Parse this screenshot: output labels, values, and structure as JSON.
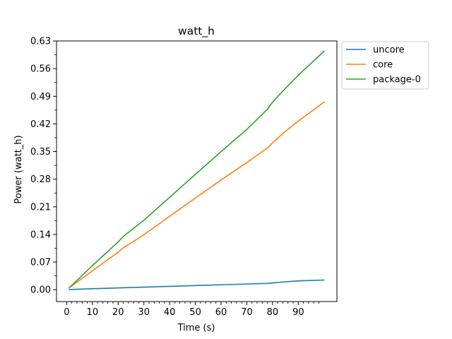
{
  "chart_data": {
    "type": "line",
    "title": "watt_h",
    "xlabel": "Time (s)",
    "ylabel": "Power (watt_h)",
    "xlim": [
      -3.95,
      105
    ],
    "ylim": [
      -0.03,
      0.63
    ],
    "xticks": [
      0,
      10,
      20,
      30,
      40,
      50,
      60,
      70,
      80,
      90
    ],
    "xtick_labels": [
      "0",
      "10",
      "20",
      "30",
      "40",
      "50",
      "60",
      "70",
      "80",
      "90"
    ],
    "yticks": [
      0.0,
      0.07,
      0.14,
      0.21,
      0.28,
      0.35,
      0.42,
      0.49,
      0.56,
      0.63
    ],
    "ytick_labels": [
      "0.00",
      "0.07",
      "0.14",
      "0.21",
      "0.28",
      "0.35",
      "0.42",
      "0.49",
      "0.56",
      "0.63"
    ],
    "grid": false,
    "legend_position": "outside-upper-right",
    "series": [
      {
        "name": "uncore",
        "color": "#1f77b4",
        "x": [
          1,
          10,
          20,
          30,
          40,
          50,
          60,
          70,
          78,
          80,
          82,
          90,
          100
        ],
        "y": [
          0.0005,
          0.0025,
          0.0045,
          0.0065,
          0.0085,
          0.0105,
          0.0125,
          0.0145,
          0.016,
          0.017,
          0.0185,
          0.0225,
          0.0245
        ]
      },
      {
        "name": "core",
        "color": "#ff7f0e",
        "x": [
          1,
          10,
          20,
          22,
          30,
          40,
          50,
          60,
          70,
          78,
          80,
          85,
          90,
          100
        ],
        "y": [
          0.005,
          0.048,
          0.095,
          0.106,
          0.139,
          0.186,
          0.232,
          0.278,
          0.322,
          0.359,
          0.372,
          0.401,
          0.427,
          0.475
        ]
      },
      {
        "name": "package-0",
        "color": "#2ca02c",
        "x": [
          1,
          10,
          20,
          22,
          30,
          40,
          50,
          60,
          70,
          78,
          80,
          85,
          90,
          100
        ],
        "y": [
          0.005,
          0.061,
          0.121,
          0.135,
          0.176,
          0.234,
          0.292,
          0.35,
          0.406,
          0.457,
          0.475,
          0.51,
          0.543,
          0.604
        ]
      }
    ]
  }
}
